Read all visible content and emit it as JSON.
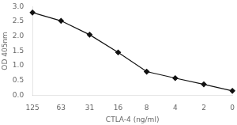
{
  "chart_data": {
    "type": "line",
    "categories": [
      "125",
      "63",
      "31",
      "16",
      "8",
      "4",
      "2",
      "0"
    ],
    "values": [
      2.8,
      2.52,
      2.05,
      1.45,
      0.8,
      0.58,
      0.37,
      0.15
    ],
    "xlabel": "CTLA-4 (ng/ml)",
    "ylabel": "OD 405nm",
    "ylim": [
      0.0,
      3.0
    ],
    "yticks": [
      {
        "value": 0.0,
        "label": "0.0"
      },
      {
        "value": 0.5,
        "label": "0.5"
      },
      {
        "value": 1.0,
        "label": "1.0"
      },
      {
        "value": 1.5,
        "label": "1.5"
      },
      {
        "value": 2.0,
        "label": "2.0"
      },
      {
        "value": 2.5,
        "label": "2.5"
      },
      {
        "value": 3.0,
        "label": "3.0"
      }
    ],
    "color": "#111111",
    "marker": "diamond",
    "grid": false
  }
}
